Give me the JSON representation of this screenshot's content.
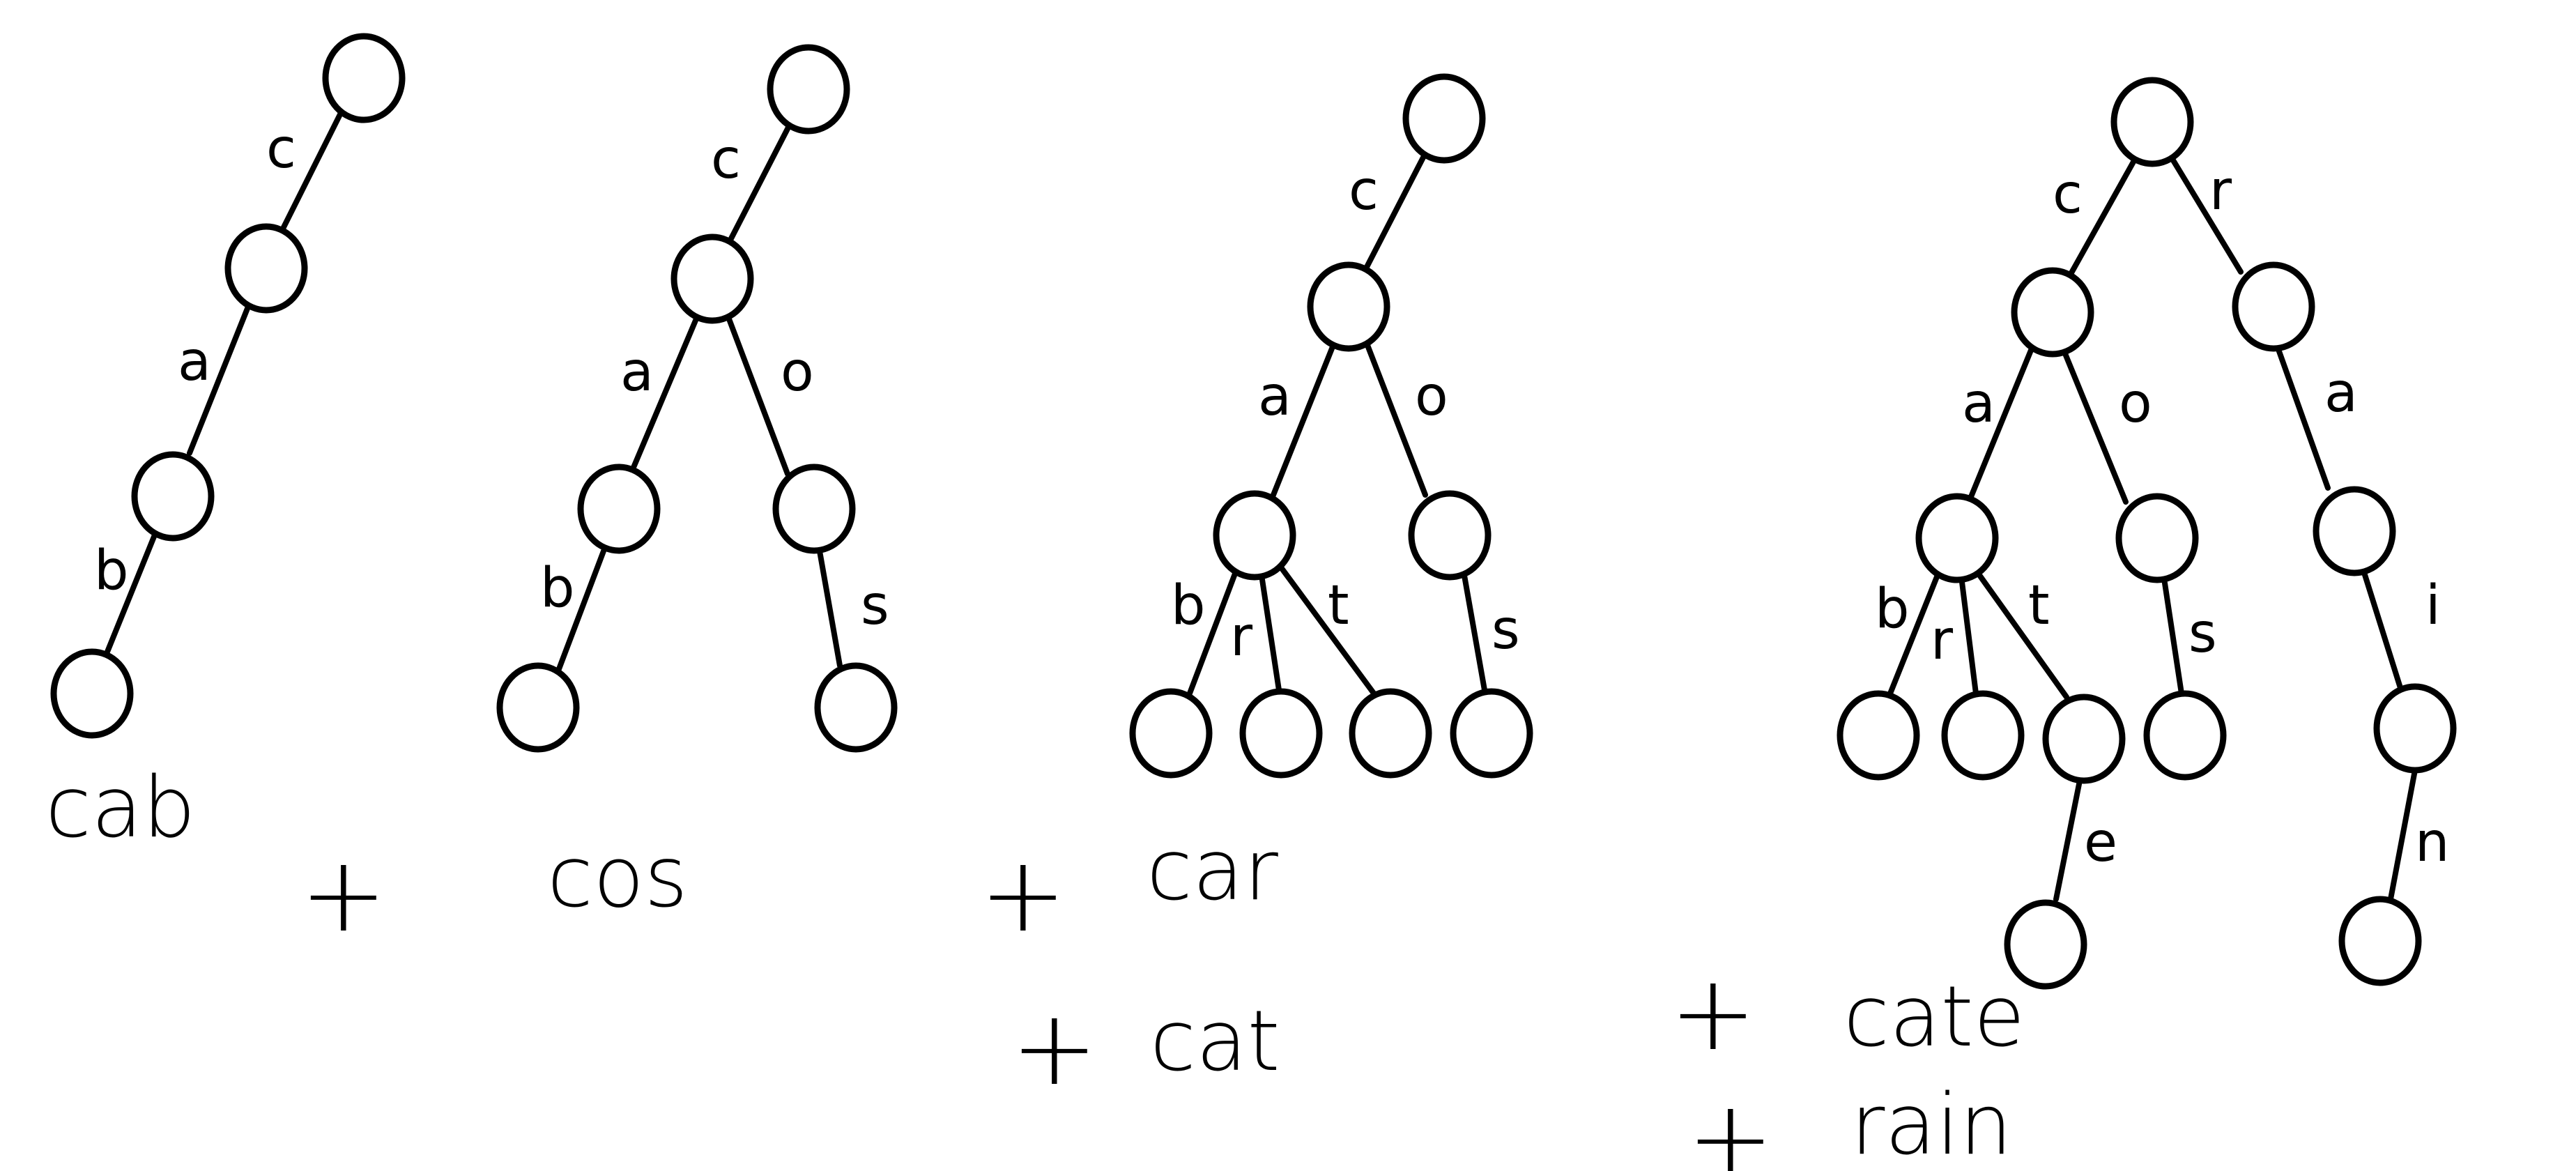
{
  "tries": [
    {
      "edges": [
        {
          "label": "c"
        },
        {
          "label": "a"
        },
        {
          "label": "b"
        }
      ]
    },
    {
      "edges": [
        {
          "label": "c"
        },
        {
          "label": "a"
        },
        {
          "label": "o"
        },
        {
          "label": "b"
        },
        {
          "label": "s"
        }
      ]
    },
    {
      "edges": [
        {
          "label": "c"
        },
        {
          "label": "a"
        },
        {
          "label": "o"
        },
        {
          "label": "b"
        },
        {
          "label": "r"
        },
        {
          "label": "t"
        },
        {
          "label": "s"
        }
      ]
    },
    {
      "edges": [
        {
          "label": "c"
        },
        {
          "label": "r"
        },
        {
          "label": "a"
        },
        {
          "label": "o"
        },
        {
          "label": "a"
        },
        {
          "label": "b"
        },
        {
          "label": "r"
        },
        {
          "label": "t"
        },
        {
          "label": "s"
        },
        {
          "label": "i"
        },
        {
          "label": "e"
        },
        {
          "label": "n"
        }
      ]
    }
  ],
  "words": {
    "w1": "cab",
    "w2": "cos",
    "w3": "car",
    "w4": "cat",
    "w5": "cate",
    "w6": "rain"
  },
  "plus_sign": "+"
}
